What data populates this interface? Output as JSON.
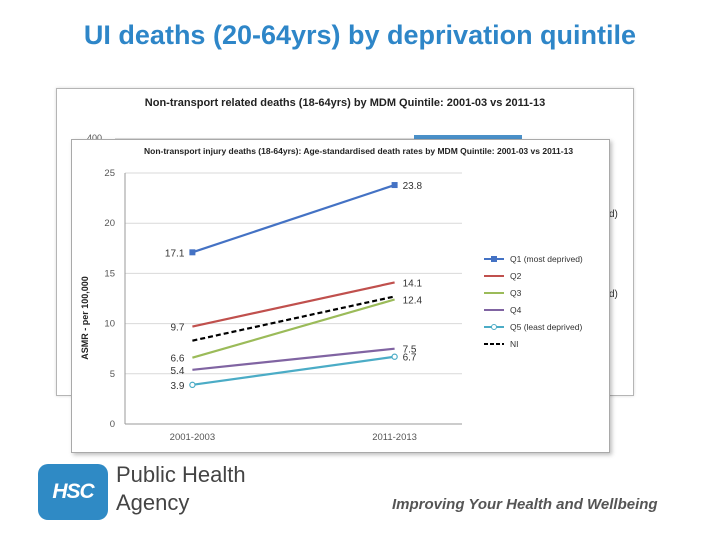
{
  "slide": {
    "title": "UI deaths (20-64yrs) by deprivation quintile"
  },
  "back_chart": {
    "title": "Non-transport related deaths (18-64yrs) by MDM Quintile: 2001-03 vs 2011-13",
    "ytick_top": "400",
    "legend_fragment_1": "d)",
    "legend_fragment_2": "d)"
  },
  "chart_data": {
    "type": "line",
    "title": "Non-transport injury deaths (18-64yrs): Age-standardised death rates by MDM Quintile: 2001-03 vs 2011-13",
    "xlabel": "",
    "ylabel": "ASMR - per 100,000",
    "ylim": [
      0,
      25
    ],
    "yticks": [
      "0",
      "5",
      "10",
      "15",
      "20",
      "25"
    ],
    "categories": [
      "2001-2003",
      "2011-2013"
    ],
    "grid": true,
    "legend_position": "right",
    "series": [
      {
        "name": "Q1 (most deprived)",
        "values": [
          17.1,
          23.8
        ],
        "labels": [
          "17.1",
          "23.8"
        ],
        "color": "#4472c4",
        "marker": "square",
        "dashed": false
      },
      {
        "name": "Q2",
        "values": [
          9.7,
          14.1
        ],
        "labels": [
          "9.7",
          "14.1"
        ],
        "color": "#c0504d",
        "marker": "none",
        "dashed": false
      },
      {
        "name": "Q3",
        "values": [
          6.6,
          12.4
        ],
        "labels": [
          "6.6",
          "12.4"
        ],
        "color": "#9bbb59",
        "marker": "none",
        "dashed": false
      },
      {
        "name": "Q4",
        "values": [
          5.4,
          7.5
        ],
        "labels": [
          "5.4",
          "7.5"
        ],
        "color": "#8064a2",
        "marker": "none",
        "dashed": false
      },
      {
        "name": "Q5 (least deprived)",
        "values": [
          3.9,
          6.7
        ],
        "labels": [
          "3.9",
          "6.7"
        ],
        "color": "#4bacc6",
        "marker": "circle",
        "dashed": false
      },
      {
        "name": "NI",
        "values": [
          8.3,
          12.7
        ],
        "labels": [
          "",
          ""
        ],
        "color": "#000000",
        "marker": "none",
        "dashed": true
      }
    ]
  },
  "footer": {
    "logo_text": "HSC",
    "agency_line1": "Public Health",
    "agency_line2": "Agency",
    "tagline": "Improving Your Health and Wellbeing",
    "brand_color": "#2f8ac5"
  }
}
